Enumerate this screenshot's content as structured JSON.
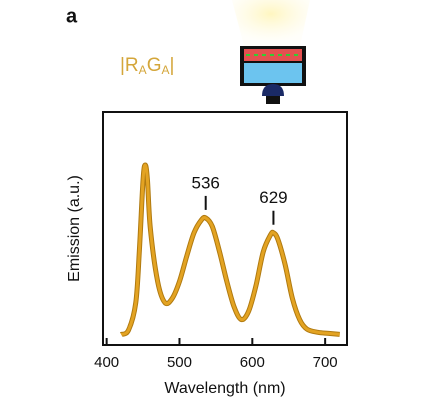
{
  "panel_label": "a",
  "sample_label": [
    "|R",
    "A",
    "G",
    "A",
    "|"
  ],
  "chart_data": {
    "type": "line",
    "xlabel": "Wavelength (nm)",
    "ylabel": "Emission (a.u.)",
    "xlim": [
      395,
      730
    ],
    "xticks": [
      400,
      500,
      600,
      700
    ],
    "ylim": [
      0,
      1.1
    ],
    "color": "#e3a322",
    "peak_labels": [
      536,
      629
    ],
    "x": [
      420,
      430,
      440,
      445,
      450,
      453,
      456,
      460,
      470,
      480,
      490,
      500,
      510,
      520,
      530,
      536,
      545,
      555,
      565,
      575,
      585,
      595,
      605,
      615,
      625,
      629,
      635,
      645,
      655,
      665,
      675,
      690,
      705,
      720
    ],
    "values": [
      0.05,
      0.07,
      0.2,
      0.45,
      0.78,
      0.85,
      0.78,
      0.55,
      0.3,
      0.2,
      0.22,
      0.3,
      0.42,
      0.53,
      0.59,
      0.6,
      0.56,
      0.44,
      0.3,
      0.18,
      0.12,
      0.16,
      0.28,
      0.44,
      0.52,
      0.53,
      0.5,
      0.38,
      0.22,
      0.12,
      0.075,
      0.06,
      0.055,
      0.05
    ]
  }
}
